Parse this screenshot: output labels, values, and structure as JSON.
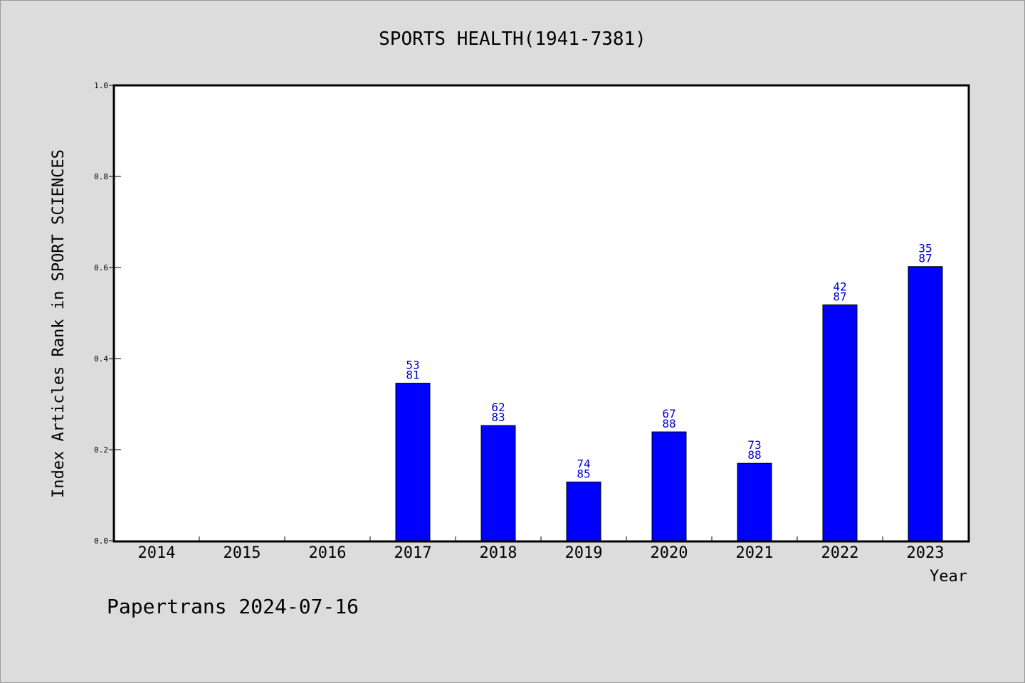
{
  "chart_data": {
    "type": "bar",
    "title": "SPORTS HEALTH(1941-7381)",
    "xlabel": "Year",
    "ylabel": "Index Articles Rank in SPORT SCIENCES",
    "ylim": [
      0,
      1.0
    ],
    "yticks": [
      "0.0",
      "0.2",
      "0.4",
      "0.6",
      "0.8",
      "1.0"
    ],
    "categories": [
      "2014",
      "2015",
      "2016",
      "2017",
      "2018",
      "2019",
      "2020",
      "2021",
      "2022",
      "2023"
    ],
    "values": [
      null,
      null,
      null,
      0.346,
      0.253,
      0.129,
      0.239,
      0.17,
      0.518,
      0.602
    ],
    "labels_top": [
      null,
      null,
      null,
      "53",
      "62",
      "74",
      "67",
      "73",
      "42",
      "35"
    ],
    "labels_bottom": [
      null,
      null,
      null,
      "81",
      "83",
      "85",
      "88",
      "88",
      "87",
      "87"
    ],
    "bar_color": "#0000ff",
    "label_color": "#0000cc",
    "grid": false
  },
  "footer": "Papertrans 2024-07-16"
}
